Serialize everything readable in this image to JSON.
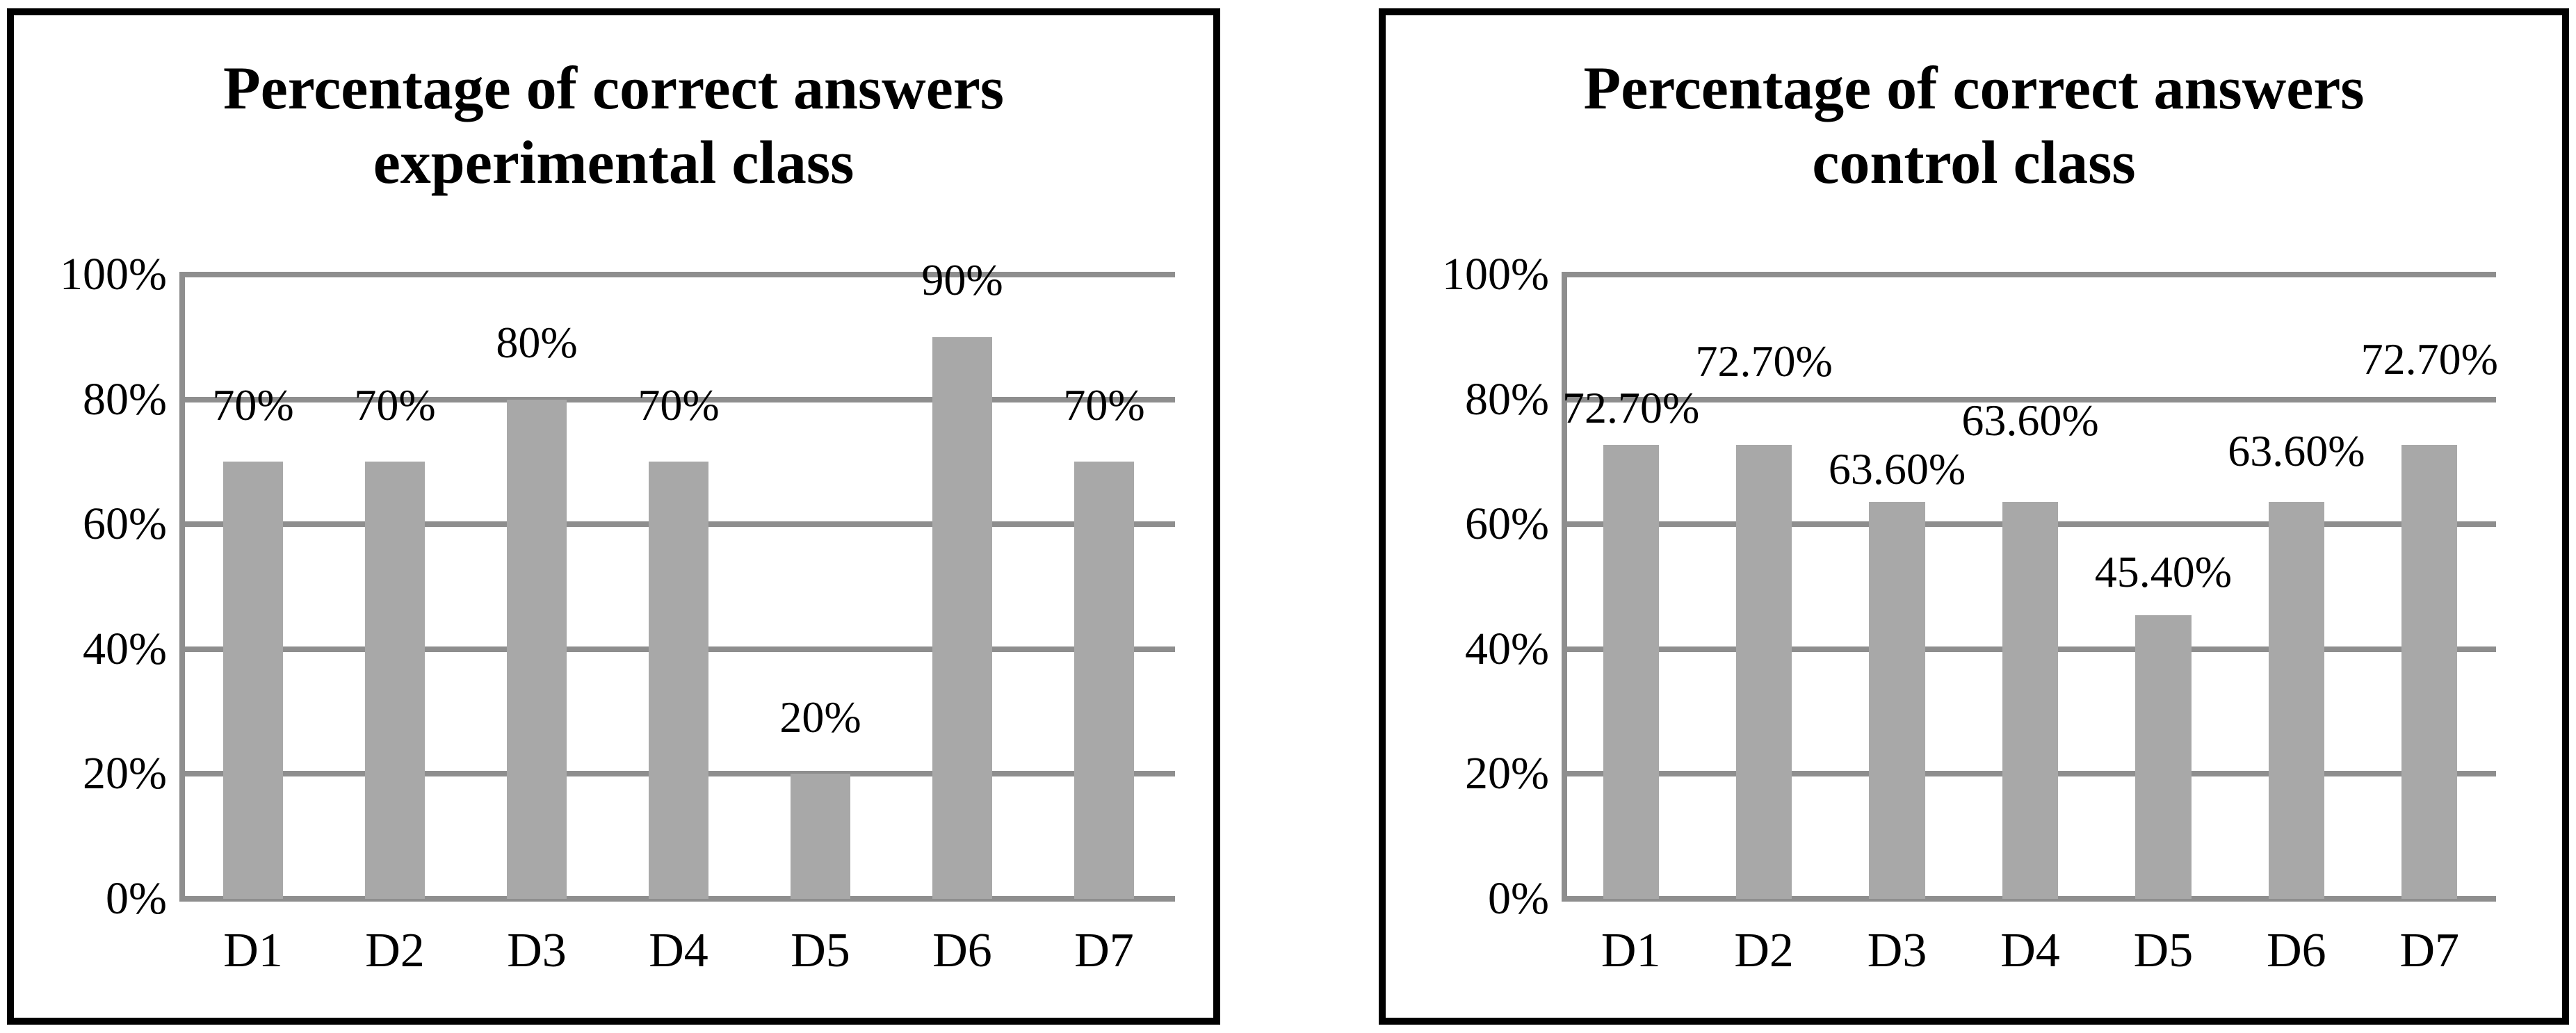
{
  "page": {
    "background": "#ffffff",
    "text_color": "#000000",
    "panel_border_color": "#000000"
  },
  "chart_data": [
    {
      "type": "bar",
      "title": "Percentage of correct answers experimental class",
      "title_line1": "Percentage of correct answers",
      "title_line2": "experimental class",
      "categories": [
        "D1",
        "D2",
        "D3",
        "D4",
        "D5",
        "D6",
        "D7"
      ],
      "values": [
        70,
        70,
        80,
        70,
        20,
        90,
        70
      ],
      "labels": [
        "70%",
        "70%",
        "80%",
        "70%",
        "20%",
        "90%",
        "70%"
      ],
      "label_offsets_pct": [
        5.4,
        5.4,
        5.4,
        5.4,
        5.4,
        5.4,
        5.4
      ],
      "xlabel": "",
      "ylabel": "",
      "ylim": [
        0,
        100
      ],
      "yticks": [
        0,
        20,
        40,
        60,
        80,
        100
      ],
      "ytick_labels": [
        "0%",
        "20%",
        "40%",
        "60%",
        "80%",
        "100%"
      ],
      "grid": true,
      "legend": "none",
      "bar_color": "#a8a8a8",
      "gridline_color": "#8e8e8e"
    },
    {
      "type": "bar",
      "title": "Percentage of correct answers control class",
      "title_line1": "Percentage of correct answers",
      "title_line2": "control class",
      "categories": [
        "D1",
        "D2",
        "D3",
        "D4",
        "D5",
        "D6",
        "D7"
      ],
      "values": [
        72.7,
        72.7,
        63.6,
        63.6,
        45.4,
        63.6,
        72.7
      ],
      "labels": [
        "72.70%",
        "72.70%",
        "63.60%",
        "63.60%",
        "45.40%",
        "63.60%",
        "72.70%"
      ],
      "label_offsets_pct": [
        2.2,
        9.7,
        1.6,
        9.3,
        3.3,
        4.4,
        10
      ],
      "xlabel": "",
      "ylabel": "",
      "ylim": [
        0,
        100
      ],
      "yticks": [
        0,
        20,
        40,
        60,
        80,
        100
      ],
      "ytick_labels": [
        "0%",
        "20%",
        "40%",
        "60%",
        "80%",
        "100%"
      ],
      "grid": true,
      "legend": "none",
      "bar_color": "#a8a8a8",
      "gridline_color": "#8e8e8e"
    }
  ]
}
